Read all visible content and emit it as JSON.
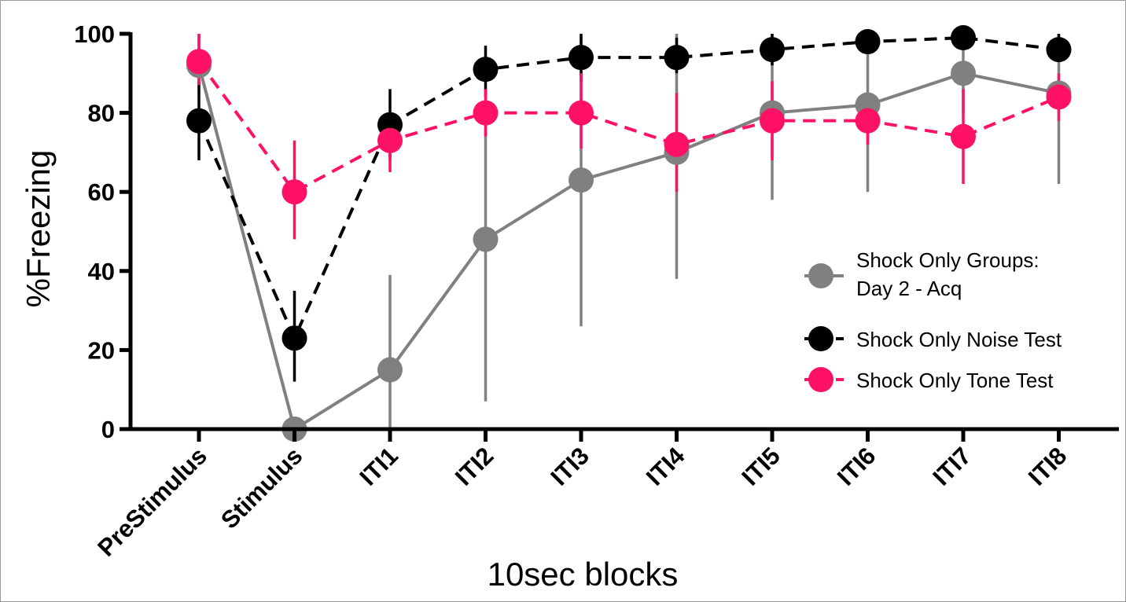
{
  "chart_data": {
    "type": "line",
    "title": "",
    "xlabel": "10sec blocks",
    "ylabel": "%Freezing",
    "ylim": [
      0,
      100
    ],
    "yticks": [
      0,
      20,
      40,
      60,
      80,
      100
    ],
    "categories": [
      "PreStimulus",
      "Stimulus",
      "ITI1",
      "ITI2",
      "ITI3",
      "ITI4",
      "ITI5",
      "ITI6",
      "ITI7",
      "ITI8"
    ],
    "legend_position": "right",
    "series": [
      {
        "name": "Shock Only Groups: Day 2 - Acq",
        "legend_lines": [
          "Shock Only Groups:",
          "Day 2 - Acq"
        ],
        "color": "#808080",
        "line_style": "solid",
        "values": [
          92,
          0,
          15,
          48,
          63,
          70,
          80,
          82,
          90,
          85
        ],
        "err_low": [
          85,
          0,
          0,
          7,
          26,
          38,
          58,
          60,
          80,
          62
        ],
        "err_high": [
          100,
          0,
          39,
          76,
          100,
          100,
          100,
          100,
          100,
          100
        ]
      },
      {
        "name": "Shock Only Noise Test",
        "legend_lines": [
          "Shock Only Noise Test"
        ],
        "color": "#000000",
        "line_style": "dashed",
        "values": [
          78,
          23,
          77,
          91,
          94,
          94,
          96,
          98,
          99,
          96
        ],
        "err_low": [
          68,
          12,
          68,
          84,
          88,
          90,
          92,
          95,
          97,
          93
        ],
        "err_high": [
          88,
          35,
          86,
          97,
          100,
          99,
          100,
          100,
          100,
          100
        ]
      },
      {
        "name": "Shock Only Tone Test",
        "legend_lines": [
          "Shock Only Tone Test"
        ],
        "color": "#ff1166",
        "line_style": "dashed",
        "values": [
          93,
          60,
          73,
          80,
          80,
          72,
          78,
          78,
          74,
          84
        ],
        "err_low": [
          87,
          48,
          65,
          74,
          71,
          60,
          68,
          72,
          62,
          78
        ],
        "err_high": [
          100,
          73,
          80,
          86,
          90,
          85,
          88,
          85,
          86,
          90
        ]
      }
    ]
  }
}
